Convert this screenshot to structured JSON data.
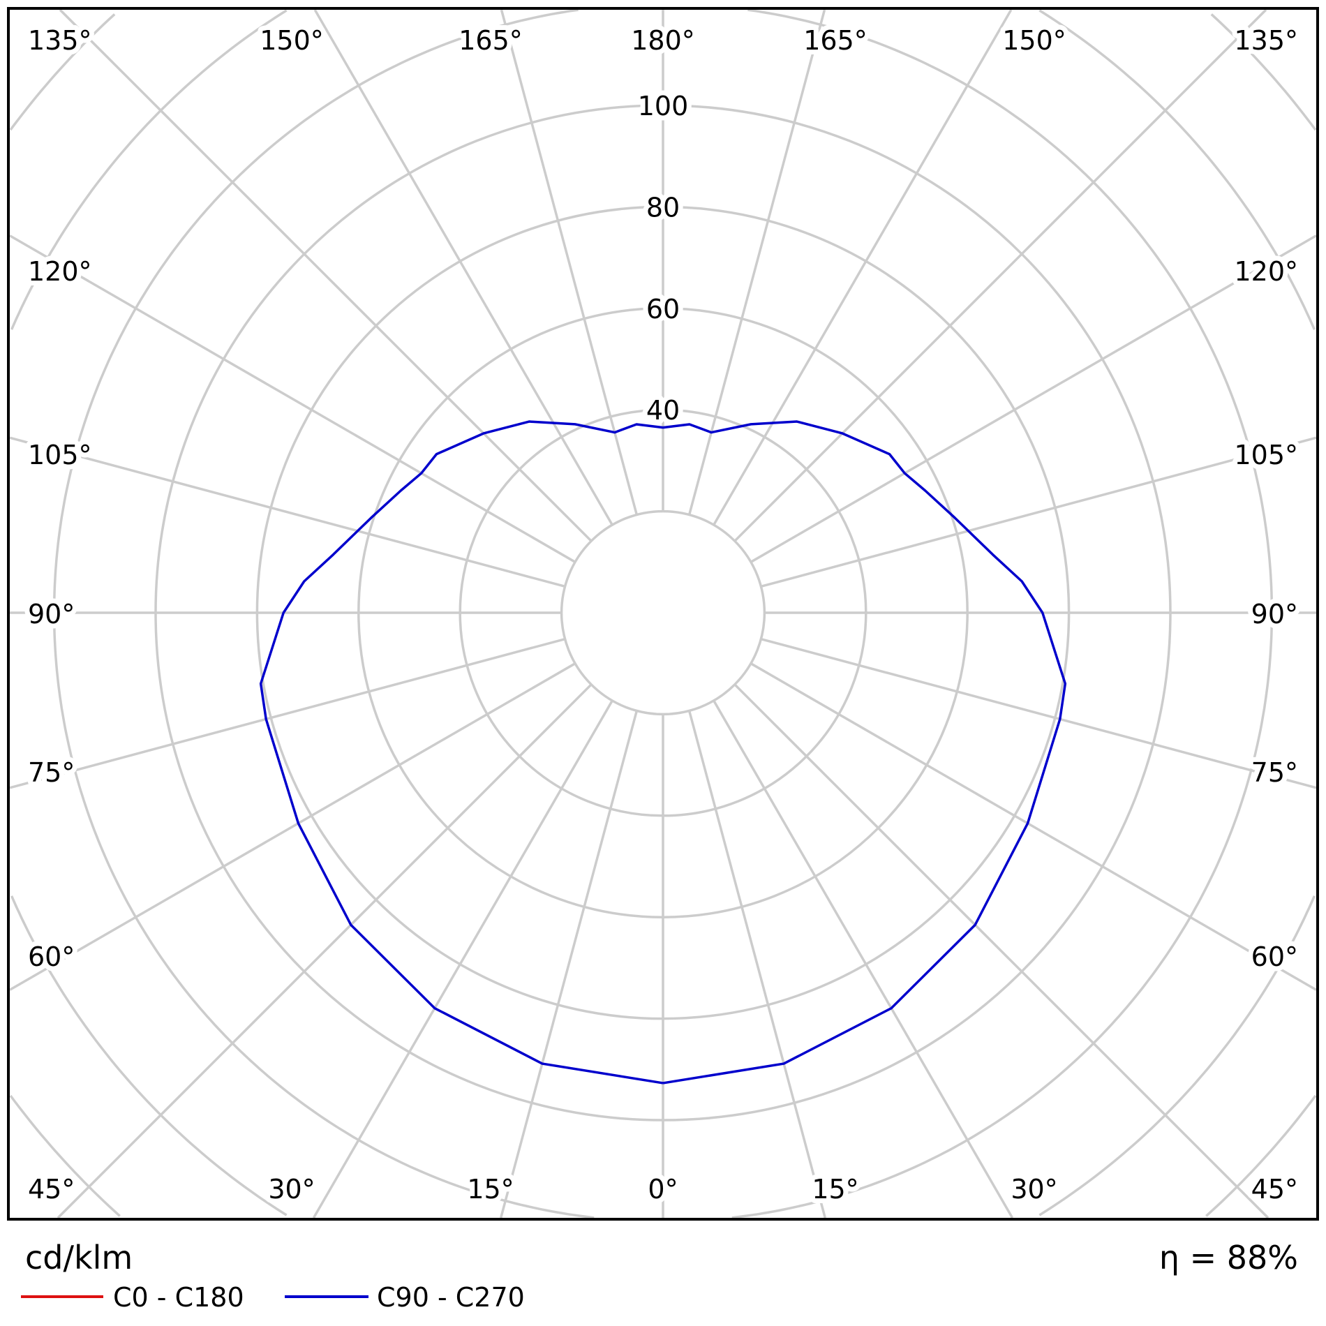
{
  "chart_data": {
    "type": "polar",
    "unit_label": "cd/klm",
    "efficiency_label": "η = 88%",
    "radial_ticks": [
      "40",
      "60",
      "80",
      "100"
    ],
    "radial_tick_values": [
      40,
      60,
      80,
      100
    ],
    "ring_step": 20,
    "angle_ticks_left": [
      "135°",
      "120°",
      "105°",
      "90°",
      "75°",
      "60°",
      "45°"
    ],
    "angle_ticks_top": [
      "150°",
      "165°",
      "180°",
      "165°",
      "150°"
    ],
    "angle_ticks_bottom": [
      "30°",
      "15°",
      "0°",
      "15°",
      "30°"
    ],
    "angle_ticks_right": [
      "135°",
      "120°",
      "105°",
      "90°",
      "75°",
      "60°",
      "45°"
    ],
    "grid": true,
    "legend_position": "bottom-left",
    "legend": [
      {
        "name": "C0 - C180",
        "color": "#dd1111"
      },
      {
        "name": "C90 - C270",
        "color": "#0000cc"
      }
    ],
    "series": [
      {
        "name": "C90 - C270",
        "color": "#0000cc",
        "gamma": [
          0,
          15,
          30,
          45,
          60,
          75,
          80,
          90,
          95,
          100,
          108,
          115,
          120,
          125,
          135,
          145,
          155,
          165,
          172,
          180
        ],
        "values": [
          92.7,
          92,
          90,
          87,
          83,
          81,
          80.5,
          74.8,
          71,
          66,
          60.5,
          57,
          55,
          54.5,
          50,
          46,
          41,
          36.8,
          37.5,
          36.5
        ]
      }
    ]
  },
  "colors": {
    "grid": "#cccccc",
    "frame": "#000000"
  }
}
